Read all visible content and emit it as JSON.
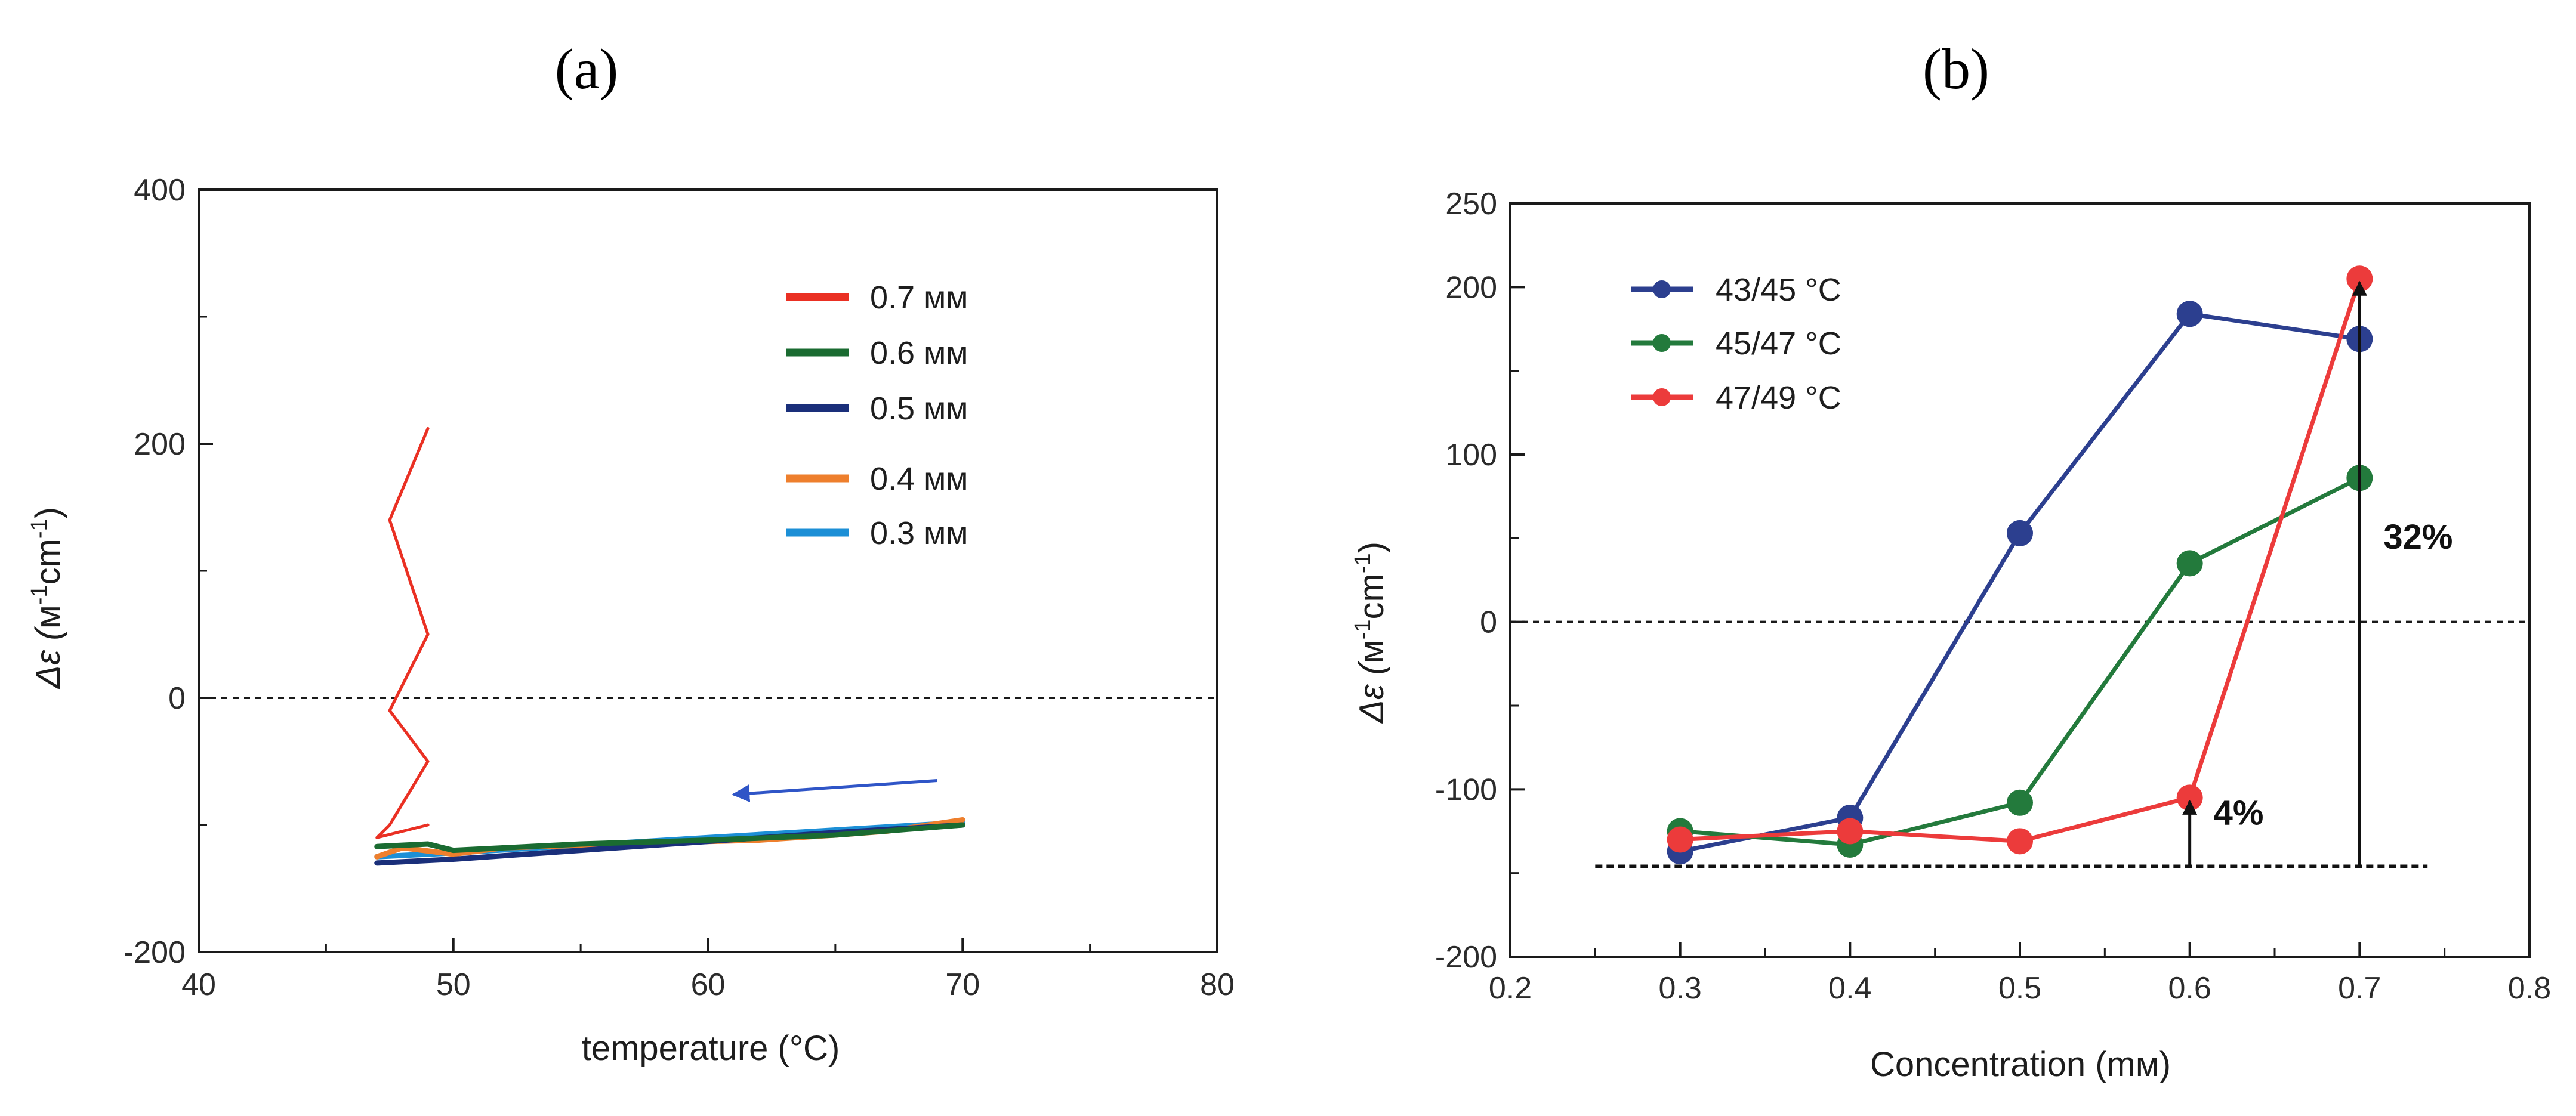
{
  "chart_data": [
    {
      "panel_label": "(a)",
      "type": "line",
      "title": "",
      "xlabel": "temperature (°C)",
      "ylabel_prefix": "Δε (",
      "ylabel_unit_m": "м",
      "ylabel_exp1": "-1",
      "ylabel_unit_cm": "cm",
      "ylabel_exp2": "-1",
      "ylabel_suffix": ")",
      "xlim": [
        40,
        80
      ],
      "ylim": [
        -200,
        400
      ],
      "xticks": [
        40,
        50,
        60,
        70,
        80
      ],
      "yticks": [
        -200,
        0,
        200,
        400
      ],
      "xtick_labels": [
        "40",
        "50",
        "60",
        "70",
        "80"
      ],
      "ytick_labels": [
        "-200",
        "0",
        "200",
        "400"
      ],
      "zero_line": 0,
      "legend_position": "top-right",
      "arrow": {
        "from": [
          69,
          -65
        ],
        "to": [
          61,
          -76
        ],
        "color": "#2f55c7"
      },
      "series": [
        {
          "name": "0.7 мм",
          "color": "#ea3023",
          "x": [
            49,
            47.5,
            49,
            47.5,
            49,
            47.5,
            47,
            49
          ],
          "y": [
            212,
            140,
            50,
            -10,
            -50,
            -100,
            -110,
            -100
          ]
        },
        {
          "name": "0.6 мм",
          "color": "#1a6b31",
          "x": [
            47,
            49,
            50,
            55,
            60,
            65,
            70
          ],
          "y": [
            -117,
            -115,
            -120,
            -115,
            -112,
            -108,
            -100
          ]
        },
        {
          "name": "0.5 мм",
          "color": "#1a2f7a",
          "x": [
            47,
            50,
            55,
            60,
            65,
            70
          ],
          "y": [
            -130,
            -127,
            -120,
            -113,
            -106,
            -100
          ]
        },
        {
          "name": "0.4 мм",
          "color": "#ee7f2d",
          "x": [
            47,
            48,
            50,
            52,
            55,
            57,
            60,
            62,
            65,
            67,
            70
          ],
          "y": [
            -125,
            -118,
            -123,
            -118,
            -116,
            -114,
            -113,
            -112,
            -108,
            -105,
            -96
          ]
        },
        {
          "name": "0.3 мм",
          "color": "#1c8fd6",
          "x": [
            47,
            50,
            55,
            60,
            65,
            70
          ],
          "y": [
            -125,
            -122,
            -116,
            -110,
            -104,
            -98
          ]
        }
      ]
    },
    {
      "panel_label": "(b)",
      "type": "line",
      "title": "",
      "xlabel": "Concentration (mм)",
      "ylabel_prefix": "Δε (",
      "ylabel_unit_m": "м",
      "ylabel_exp1": "-1",
      "ylabel_unit_cm": "cm",
      "ylabel_exp2": "-1",
      "ylabel_suffix": ")",
      "xlim": [
        0.2,
        0.8
      ],
      "ylim": [
        -200,
        250
      ],
      "xticks": [
        0.2,
        0.3,
        0.4,
        0.5,
        0.6,
        0.7,
        0.8
      ],
      "yticks": [
        -200,
        -100,
        0,
        100,
        200,
        250
      ],
      "xtick_labels": [
        "0.2",
        "0.3",
        "0.4",
        "0.5",
        "0.6",
        "0.7",
        "0.8"
      ],
      "ytick_labels": [
        "-200",
        "-100",
        "0",
        "100",
        "200",
        "250"
      ],
      "zero_line": 0,
      "baseline": {
        "y": -146,
        "x_range": [
          0.25,
          0.74
        ]
      },
      "legend_position": "top-left",
      "annotations": [
        {
          "text": "4%",
          "x": 0.6,
          "y_from": -146,
          "y_to": -105
        },
        {
          "text": "32%",
          "x": 0.7,
          "y_from": -146,
          "y_to": 205
        }
      ],
      "series": [
        {
          "name": "43/45 °C",
          "color": "#2c3f8f",
          "x": [
            0.3,
            0.4,
            0.5,
            0.6,
            0.7
          ],
          "y": [
            -137,
            -117,
            53,
            184,
            169
          ]
        },
        {
          "name": "45/47 °C",
          "color": "#237a3c",
          "x": [
            0.3,
            0.4,
            0.5,
            0.6,
            0.7
          ],
          "y": [
            -125,
            -133,
            -108,
            35,
            86
          ]
        },
        {
          "name": "47/49 °C",
          "color": "#ec3b3b",
          "x": [
            0.3,
            0.4,
            0.5,
            0.6,
            0.7
          ],
          "y": [
            -130,
            -125,
            -131,
            -105,
            205
          ]
        }
      ]
    }
  ]
}
